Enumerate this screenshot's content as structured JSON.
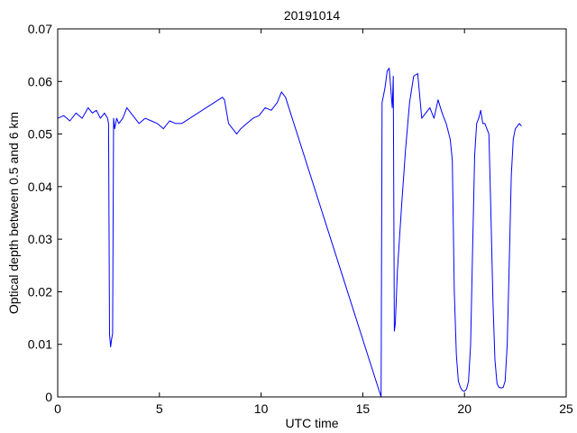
{
  "chart_data": {
    "type": "line",
    "title": "20191014",
    "xlabel": "UTC time",
    "ylabel": "Optical depth between 0.5 and 6 km",
    "xlim": [
      0,
      25
    ],
    "ylim": [
      0,
      0.07
    ],
    "xticks": [
      0,
      5,
      10,
      15,
      20,
      25
    ],
    "xtick_labels": [
      "0",
      "5",
      "10",
      "15",
      "20",
      "25"
    ],
    "yticks": [
      0,
      0.01,
      0.02,
      0.03,
      0.04,
      0.05,
      0.06,
      0.07
    ],
    "ytick_labels": [
      "0",
      "0.01",
      "0.02",
      "0.03",
      "0.04",
      "0.05",
      "0.06",
      "0.07"
    ],
    "grid": false,
    "series_color": "#0000ff",
    "series": [
      {
        "x": [
          0.0,
          0.3,
          0.6,
          0.9,
          1.2,
          1.5,
          1.7,
          1.9,
          2.1,
          2.3,
          2.45,
          2.5,
          2.55,
          2.6,
          2.65,
          2.7,
          2.75,
          2.8,
          2.85,
          2.9,
          3.0,
          3.2,
          3.4,
          3.6,
          3.8,
          4.0,
          4.3,
          4.6,
          4.9,
          5.2,
          5.5,
          5.8,
          6.1,
          8.1,
          8.2,
          8.4,
          8.6,
          8.8,
          9.0,
          9.3,
          9.6,
          9.9,
          10.2,
          10.5,
          10.8,
          11.0,
          11.2,
          15.9,
          15.95,
          16.0,
          16.1,
          16.2,
          16.3,
          16.45,
          16.5,
          16.55,
          16.6,
          16.7,
          16.9,
          17.1,
          17.3,
          17.5,
          17.7,
          17.9,
          18.1,
          18.3,
          18.5,
          18.7,
          18.9,
          19.1,
          19.3,
          19.4,
          19.5,
          19.6,
          19.7,
          19.8,
          19.9,
          20.0,
          20.1,
          20.2,
          20.3,
          20.4,
          20.5,
          20.6,
          20.7,
          20.8,
          20.9,
          21.0,
          21.1,
          21.2,
          21.3,
          21.4,
          21.5,
          21.6,
          21.7,
          21.8,
          21.9,
          22.0,
          22.1,
          22.2,
          22.3,
          22.4,
          22.5,
          22.6,
          22.7,
          22.8
        ],
        "y": [
          0.053,
          0.0535,
          0.0525,
          0.054,
          0.053,
          0.055,
          0.054,
          0.0545,
          0.053,
          0.054,
          0.053,
          0.052,
          0.012,
          0.0095,
          0.011,
          0.012,
          0.053,
          0.051,
          0.052,
          0.053,
          0.052,
          0.053,
          0.055,
          0.054,
          0.053,
          0.052,
          0.053,
          0.0525,
          0.052,
          0.051,
          0.0525,
          0.052,
          0.052,
          0.057,
          0.0565,
          0.052,
          0.051,
          0.05,
          0.051,
          0.052,
          0.053,
          0.0535,
          0.055,
          0.0545,
          0.056,
          0.058,
          0.057,
          0.0,
          0.056,
          0.057,
          0.059,
          0.062,
          0.0625,
          0.055,
          0.061,
          0.0125,
          0.014,
          0.024,
          0.036,
          0.047,
          0.056,
          0.061,
          0.0615,
          0.053,
          0.054,
          0.055,
          0.053,
          0.0565,
          0.054,
          0.052,
          0.049,
          0.045,
          0.02,
          0.008,
          0.003,
          0.0018,
          0.0012,
          0.0011,
          0.0015,
          0.003,
          0.01,
          0.028,
          0.046,
          0.052,
          0.053,
          0.0545,
          0.052,
          0.052,
          0.051,
          0.05,
          0.035,
          0.018,
          0.007,
          0.0025,
          0.0018,
          0.0017,
          0.0018,
          0.003,
          0.01,
          0.025,
          0.042,
          0.049,
          0.051,
          0.0515,
          0.052,
          0.0515
        ]
      }
    ]
  }
}
